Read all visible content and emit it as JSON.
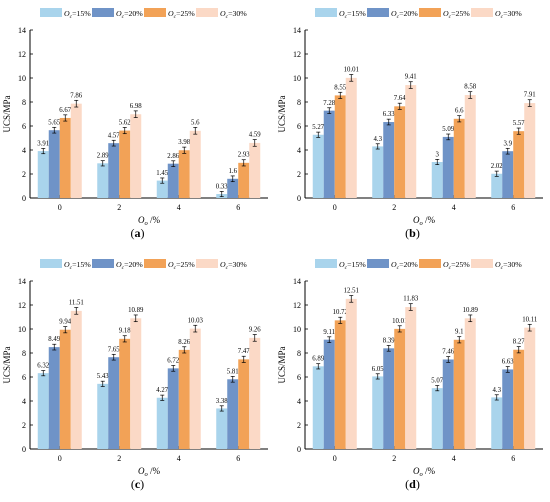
{
  "colors": {
    "s15": "#a9d4ec",
    "s20": "#6f93c7",
    "s25": "#f2a257",
    "s30": "#fbd9c6",
    "axis": "#000000"
  },
  "legend": {
    "position": "top",
    "items": [
      "Oc=15%",
      "Oc=20%",
      "Oc=25%",
      "Oc=30%"
    ]
  },
  "chart_data": [
    {
      "panel": "(a)",
      "type": "bar",
      "xlabel": "Oo /%",
      "ylabel": "UCS/MPa",
      "ylim": [
        0,
        14
      ],
      "yticks": [
        0,
        2,
        4,
        6,
        8,
        10,
        12,
        14
      ],
      "categories": [
        "0",
        "2",
        "4",
        "6"
      ],
      "series": [
        {
          "name": "Oc=15%",
          "values": [
            3.91,
            2.89,
            1.45,
            0.33
          ],
          "labels": [
            "3.91",
            "2.89",
            "1.45",
            "0.33"
          ]
        },
        {
          "name": "Oc=20%",
          "values": [
            5.65,
            4.57,
            2.86,
            1.6
          ],
          "labels": [
            "5.65",
            "4.57",
            "2.86",
            "1.6"
          ]
        },
        {
          "name": "Oc=25%",
          "values": [
            6.67,
            5.62,
            3.98,
            2.93
          ],
          "labels": [
            "6.67",
            "5.62",
            "3.98",
            "2.93"
          ]
        },
        {
          "name": "Oc=30%",
          "values": [
            7.86,
            6.98,
            5.6,
            4.59
          ],
          "labels": [
            "7.86",
            "6.98",
            "5.6",
            "4.59"
          ]
        }
      ]
    },
    {
      "panel": "(b)",
      "type": "bar",
      "xlabel": "Oo /%",
      "ylabel": "UCS/MPa",
      "ylim": [
        0,
        14
      ],
      "yticks": [
        0,
        2,
        4,
        6,
        8,
        10,
        12,
        14
      ],
      "categories": [
        "0",
        "2",
        "4",
        "6"
      ],
      "series": [
        {
          "name": "Oc=15%",
          "values": [
            5.27,
            4.3,
            3,
            2.02
          ],
          "labels": [
            "5.27",
            "4.3",
            "3",
            "2.02"
          ]
        },
        {
          "name": "Oc=20%",
          "values": [
            7.28,
            6.33,
            5.09,
            3.9
          ],
          "labels": [
            "7.28",
            "6.33",
            "5.09",
            "3.9"
          ]
        },
        {
          "name": "Oc=25%",
          "values": [
            8.55,
            7.64,
            6.6,
            5.57
          ],
          "labels": [
            "8.55",
            "7.64",
            "6.6",
            "5.57"
          ]
        },
        {
          "name": "Oc=30%",
          "values": [
            10.01,
            9.41,
            8.58,
            7.91
          ],
          "labels": [
            "10.01",
            "9.41",
            "8.58",
            "7.91"
          ]
        }
      ]
    },
    {
      "panel": "(c)",
      "type": "bar",
      "xlabel": "Oo /%",
      "ylabel": "UCS/MPa",
      "ylim": [
        0,
        14
      ],
      "yticks": [
        0,
        2,
        4,
        6,
        8,
        10,
        12,
        14
      ],
      "categories": [
        "0",
        "2",
        "4",
        "6"
      ],
      "series": [
        {
          "name": "Oc=15%",
          "values": [
            6.32,
            5.43,
            4.27,
            3.38
          ],
          "labels": [
            "6.32",
            "5.43",
            "4.27",
            "3.38"
          ]
        },
        {
          "name": "Oc=20%",
          "values": [
            8.49,
            7.65,
            6.72,
            5.81
          ],
          "labels": [
            "8.49",
            "7.65",
            "6.72",
            "5.81"
          ]
        },
        {
          "name": "Oc=25%",
          "values": [
            9.94,
            9.18,
            8.26,
            7.47
          ],
          "labels": [
            "9.94",
            "9.18",
            "8.26",
            "7.47"
          ]
        },
        {
          "name": "Oc=30%",
          "values": [
            11.51,
            10.89,
            10.03,
            9.26
          ],
          "labels": [
            "11.51",
            "10.89",
            "10.03",
            "9.26"
          ]
        }
      ]
    },
    {
      "panel": "(d)",
      "type": "bar",
      "xlabel": "Oo /%",
      "ylabel": "UCS/MPa",
      "ylim": [
        0,
        14
      ],
      "yticks": [
        0,
        2,
        4,
        6,
        8,
        10,
        12,
        14
      ],
      "categories": [
        "0",
        "2",
        "4",
        "6"
      ],
      "series": [
        {
          "name": "Oc=15%",
          "values": [
            6.89,
            6.05,
            5.07,
            4.3
          ],
          "labels": [
            "6.89",
            "6.05",
            "5.07",
            "4.3"
          ]
        },
        {
          "name": "Oc=20%",
          "values": [
            9.11,
            8.39,
            7.46,
            6.63
          ],
          "labels": [
            "9.11",
            "8.39",
            "7.46",
            "6.63"
          ]
        },
        {
          "name": "Oc=25%",
          "values": [
            10.72,
            10.01,
            9.1,
            8.27
          ],
          "labels": [
            "10.72",
            "10.01",
            "9.1",
            "8.27"
          ]
        },
        {
          "name": "Oc=30%",
          "values": [
            12.51,
            11.83,
            10.89,
            10.11
          ],
          "labels": [
            "12.51",
            "11.83",
            "10.89",
            "10.11"
          ]
        }
      ]
    }
  ]
}
